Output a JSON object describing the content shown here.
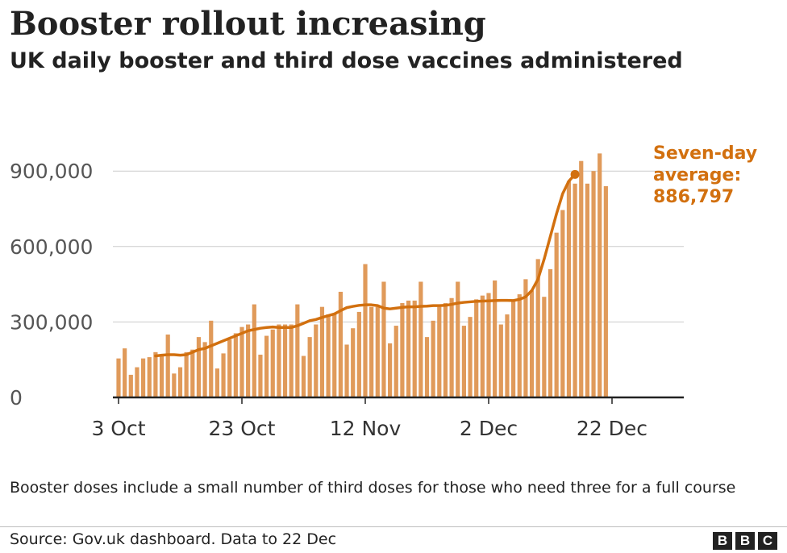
{
  "header": {
    "title": "Booster rollout increasing",
    "subtitle": "UK daily booster and third dose vaccines administered"
  },
  "footer": {
    "note": "Booster doses include a small number of third doses for those who need three for a full course",
    "source": "Source: Gov.uk dashboard. Data to 22 Dec",
    "logo_letters": [
      "B",
      "B",
      "C"
    ]
  },
  "chart_data": {
    "type": "bar",
    "start_date": "2021-10-03",
    "x_ticks": [
      "3 Oct",
      "23 Oct",
      "12 Nov",
      "2 Dec",
      "22 Dec"
    ],
    "y_ticks": [
      {
        "value": 0,
        "label": "0"
      },
      {
        "value": 300000,
        "label": "300,000"
      },
      {
        "value": 600000,
        "label": "600,000"
      },
      {
        "value": 900000,
        "label": "900,000"
      }
    ],
    "ylim": [
      0,
      1000000
    ],
    "grid": true,
    "series": [
      {
        "kind": "bar",
        "color": "#e09a5a",
        "values": [
          155000,
          195000,
          90000,
          120000,
          155000,
          160000,
          180000,
          170000,
          250000,
          95000,
          120000,
          180000,
          190000,
          240000,
          220000,
          305000,
          115000,
          175000,
          230000,
          255000,
          280000,
          290000,
          370000,
          170000,
          245000,
          270000,
          290000,
          290000,
          290000,
          370000,
          165000,
          240000,
          290000,
          360000,
          330000,
          330000,
          420000,
          210000,
          275000,
          340000,
          530000,
          360000,
          360000,
          460000,
          215000,
          285000,
          375000,
          385000,
          385000,
          460000,
          240000,
          305000,
          360000,
          375000,
          395000,
          460000,
          285000,
          320000,
          390000,
          405000,
          415000,
          465000,
          290000,
          330000,
          390000,
          410000,
          470000,
          425000,
          550000,
          400000,
          510000,
          655000,
          745000,
          860000,
          850000,
          940000,
          850000,
          900000,
          970000,
          840000
        ]
      },
      {
        "kind": "line",
        "color": "#d2700f",
        "start_index": 6,
        "values": [
          165000,
          168000,
          170000,
          170000,
          168000,
          170000,
          180000,
          190000,
          195000,
          205000,
          215000,
          225000,
          235000,
          245000,
          255000,
          265000,
          270000,
          275000,
          278000,
          280000,
          278000,
          278000,
          278000,
          285000,
          295000,
          305000,
          310000,
          318000,
          325000,
          332000,
          345000,
          357000,
          362000,
          366000,
          368000,
          368000,
          365000,
          355000,
          352000,
          355000,
          358000,
          360000,
          360000,
          362000,
          363000,
          365000,
          365000,
          366000,
          370000,
          375000,
          378000,
          380000,
          382000,
          383000,
          384000,
          385000,
          386000,
          386000,
          385000,
          390000,
          400000,
          425000,
          470000,
          550000,
          640000,
          730000,
          810000,
          860000,
          886797
        ]
      }
    ],
    "annotation": {
      "lines": [
        "Seven-day",
        "average:",
        "886,797"
      ],
      "color": "#d2700f"
    }
  }
}
